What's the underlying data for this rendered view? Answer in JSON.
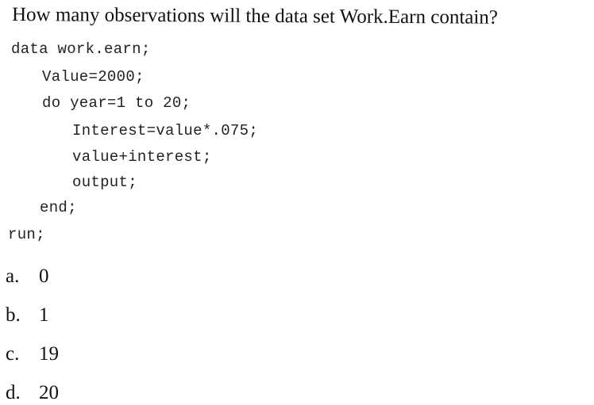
{
  "question": "How many observations will the data set Work.Earn contain?",
  "code": [
    "data work.earn;",
    "Value=2000;",
    "do year=1 to 20;",
    "Interest=value*.075;",
    "value+interest;",
    "output;",
    "end;",
    "run;"
  ],
  "options": [
    {
      "letter": "a.",
      "text": "0"
    },
    {
      "letter": "b.",
      "text": "1"
    },
    {
      "letter": "c.",
      "text": "19"
    },
    {
      "letter": "d.",
      "text": "20"
    }
  ]
}
